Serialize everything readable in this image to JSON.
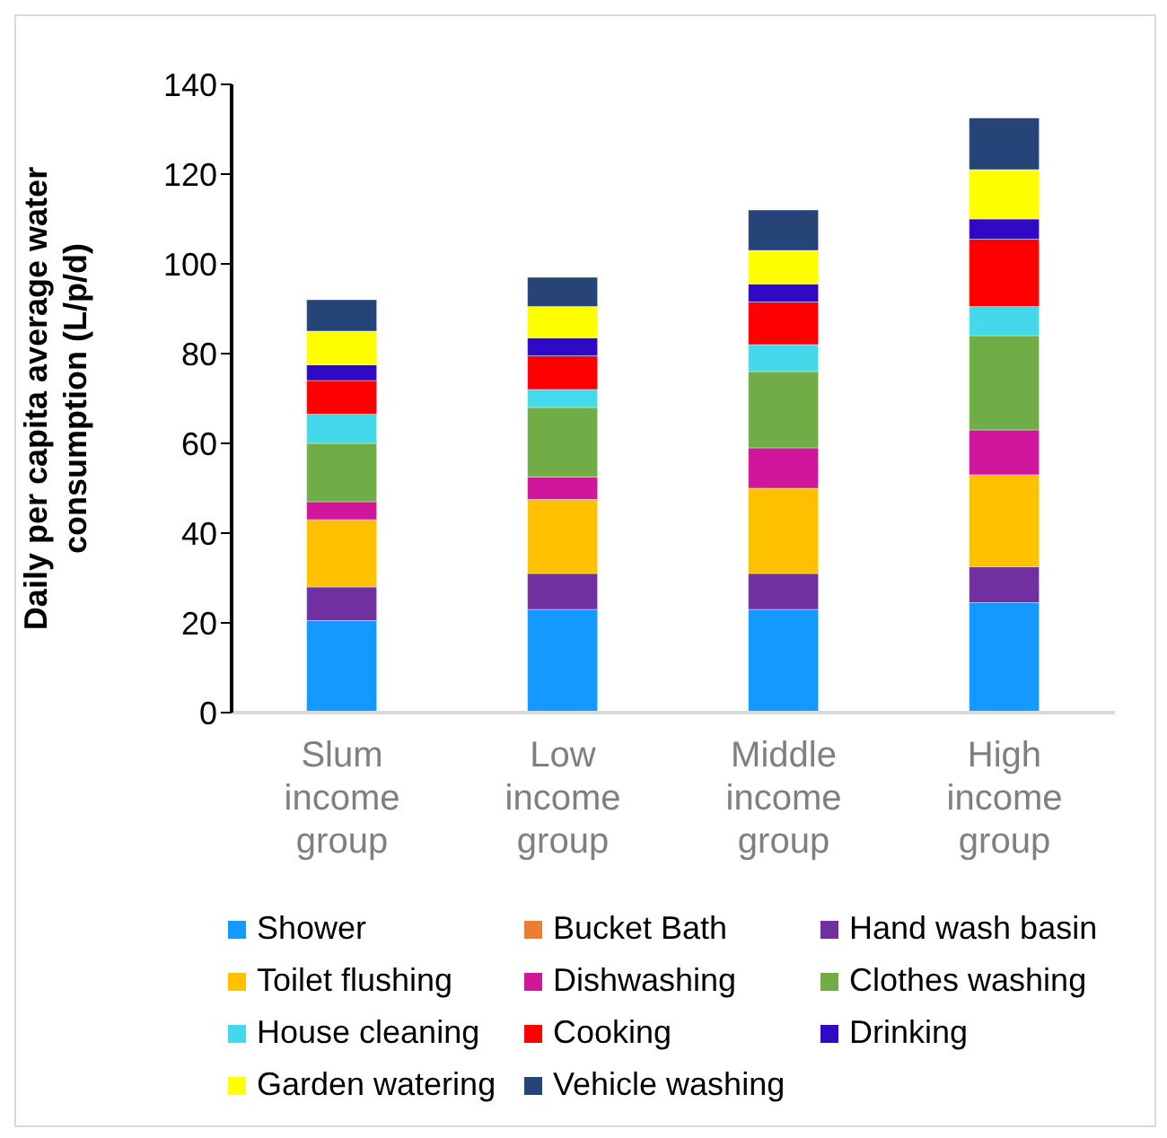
{
  "chart_data": {
    "type": "bar",
    "stacked": true,
    "ylabel": "Daily per capita average water consumption (L/p/d)",
    "categories": [
      "Slum income group",
      "Low income group",
      "Middle income group",
      "High income group"
    ],
    "series": [
      {
        "name": "Shower",
        "color": "#1399ff",
        "values": [
          20.5,
          23,
          23,
          24.5
        ]
      },
      {
        "name": "Bucket Bath",
        "color": "#ed7d31",
        "values": [
          0,
          0,
          0,
          0
        ]
      },
      {
        "name": "Hand wash basin",
        "color": "#7030a0",
        "values": [
          7.5,
          8,
          8,
          8
        ]
      },
      {
        "name": "Toilet flushing",
        "color": "#ffc000",
        "values": [
          15,
          16.5,
          19,
          20.5
        ]
      },
      {
        "name": "Dishwashing",
        "color": "#d0169b",
        "values": [
          4,
          5,
          9,
          10
        ]
      },
      {
        "name": "Clothes washing",
        "color": "#70ad47",
        "values": [
          13,
          15.5,
          17,
          21
        ]
      },
      {
        "name": "House cleaning",
        "color": "#44d8ea",
        "values": [
          6.5,
          4,
          6,
          6.5
        ]
      },
      {
        "name": "Cooking",
        "color": "#ff0000",
        "values": [
          7.5,
          7.5,
          9.5,
          15
        ]
      },
      {
        "name": "Drinking",
        "color": "#2e0ac6",
        "values": [
          3.5,
          4,
          4,
          4.5
        ]
      },
      {
        "name": "Garden watering",
        "color": "#ffff00",
        "values": [
          7.5,
          7,
          7.5,
          11
        ]
      },
      {
        "name": "Vehicle washing",
        "color": "#264478",
        "values": [
          7,
          6.5,
          9,
          11.5
        ]
      }
    ],
    "ylim": [
      0,
      140
    ],
    "yticks": [
      0,
      20,
      40,
      60,
      80,
      100,
      120,
      140
    ],
    "grid": false,
    "legend": "bottom"
  }
}
